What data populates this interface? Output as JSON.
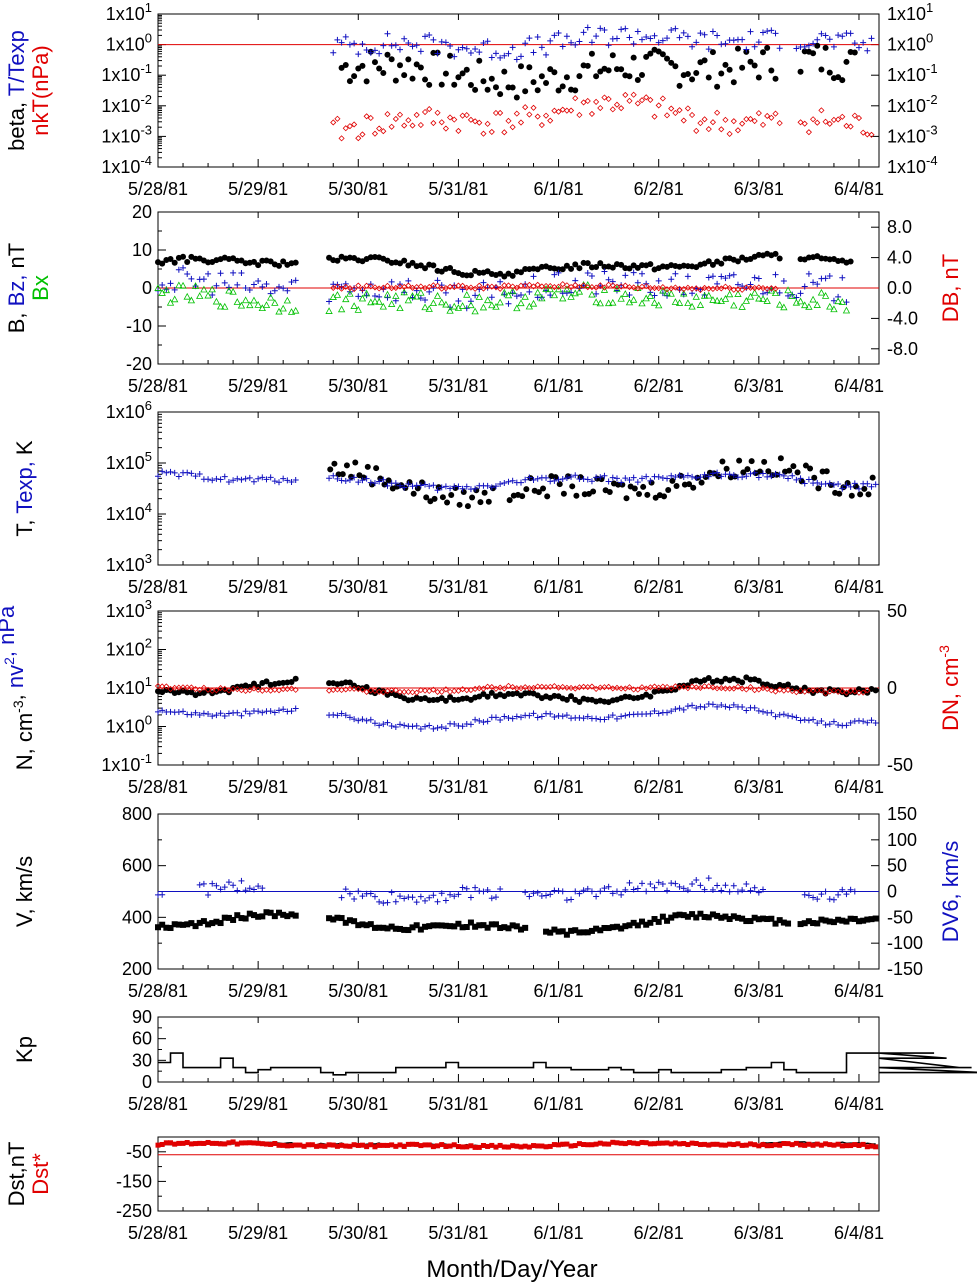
{
  "chart_data": {
    "type": "scatter",
    "x_axis": {
      "label": "Month/Day/Year",
      "ticks": [
        "5/28/81",
        "5/29/81",
        "5/30/81",
        "5/31/81",
        "6/1/81",
        "6/2/81",
        "6/3/81",
        "6/4/81"
      ],
      "range_days": [
        0,
        7.2
      ]
    },
    "colors": {
      "black": "#000000",
      "red": "#e00000",
      "blue": "#1010c0",
      "green": "#00c000"
    },
    "panels": [
      {
        "id": "beta",
        "scale": "log",
        "left_labels": [
          {
            "text": "beta, ",
            "color": "black",
            "line": 1
          },
          {
            "text": "T/Texp",
            "color": "blue",
            "line": 1
          },
          {
            "text": "nkT(nPa)",
            "color": "red",
            "line": 2
          }
        ],
        "y_ticks": [
          "1x10-4",
          "1x10-3",
          "1x10-2",
          "1x10-1",
          "1x100",
          "1x101"
        ],
        "y_exponents": [
          -4,
          -3,
          -2,
          -1,
          0,
          1
        ],
        "right_ticks": [
          "1x10-4",
          "1x10-3",
          "1x10-2",
          "1x10-1",
          "1x100",
          "1x101"
        ],
        "ylim": [
          -4,
          1
        ],
        "ref_line": {
          "y": 1,
          "color": "red"
        },
        "series": [
          {
            "name": "beta",
            "marker": "dot",
            "color": "black",
            "base": 0.15,
            "amp": 0.4,
            "noise": 0.6,
            "gaps": [
              [
                1.4,
                1.8
              ],
              [
                6.2,
                6.4
              ]
            ],
            "start": 1.75,
            "end": 7.0
          },
          {
            "name": "T/Texp",
            "marker": "plus",
            "color": "blue",
            "base": 1.2,
            "amp": 0.3,
            "noise": 0.35,
            "gaps": [
              [
                6.25,
                6.35
              ]
            ],
            "start": 1.75,
            "end": 7.15
          },
          {
            "name": "nkT",
            "marker": "diamond",
            "color": "red",
            "base": 0.004,
            "amp": 0.5,
            "noise": 0.4,
            "gaps": [
              [
                6.25,
                6.4
              ]
            ],
            "start": 1.75,
            "end": 7.15
          }
        ]
      },
      {
        "id": "bfield",
        "scale": "linear",
        "left_labels": [
          {
            "text": "B, ",
            "color": "black",
            "line": 1
          },
          {
            "text": "Bz, ",
            "color": "blue",
            "line": 1
          },
          {
            "text": "nT",
            "color": "black",
            "line": 1
          },
          {
            "text": "Bx",
            "color": "green",
            "line": 2
          }
        ],
        "right_labels": [
          {
            "text": "DB, nT",
            "color": "red"
          }
        ],
        "y_ticks": [
          "-20",
          "-10",
          "0",
          "10",
          "20"
        ],
        "y_values": [
          -20,
          -10,
          0,
          10,
          20
        ],
        "ylim": [
          -20,
          20
        ],
        "right_ticks": [
          "-8.0",
          "-4.0",
          "0.0",
          "4.0",
          "8.0"
        ],
        "right_values": [
          -8,
          -4,
          0,
          4,
          8
        ],
        "right_lim": [
          -10,
          10
        ],
        "ref_line": {
          "y": 0,
          "color": "red"
        },
        "series": [
          {
            "name": "B",
            "marker": "dot",
            "color": "black",
            "base": 6,
            "amp": 2.5,
            "noise": 0.8,
            "gaps": [
              [
                1.4,
                1.7
              ],
              [
                6.25,
                6.4
              ]
            ],
            "start": 0.0,
            "end": 6.95
          },
          {
            "name": "Bz",
            "marker": "plus",
            "color": "blue",
            "base": 0,
            "amp": 2,
            "noise": 3.5,
            "gaps": [
              [
                1.4,
                1.7
              ]
            ],
            "start": 0.0,
            "end": 6.9
          },
          {
            "name": "Bx",
            "marker": "triangle",
            "color": "green",
            "base": -3,
            "amp": 1.5,
            "noise": 2.5,
            "gaps": [
              [
                1.4,
                1.7
              ]
            ],
            "start": 0.0,
            "end": 6.9
          },
          {
            "name": "DB",
            "marker": "diamond",
            "color": "red",
            "base": 0.2,
            "amp": 0.4,
            "noise": 0.5,
            "gaps": [
              [
                0,
                1.75
              ],
              [
                6.25,
                7.2
              ]
            ],
            "start": 1.75,
            "end": 6.2
          }
        ]
      },
      {
        "id": "temp",
        "scale": "log",
        "left_labels": [
          {
            "text": "T, ",
            "color": "black",
            "line": 1
          },
          {
            "text": "Texp, ",
            "color": "blue",
            "line": 1
          },
          {
            "text": "K",
            "color": "black",
            "line": 1
          }
        ],
        "y_ticks": [
          "1x103",
          "1x104",
          "1x105",
          "1x106"
        ],
        "y_exponents": [
          3,
          4,
          5,
          6
        ],
        "ylim": [
          3,
          6
        ],
        "series": [
          {
            "name": "T",
            "marker": "dot",
            "color": "black",
            "base": 40000,
            "amp": 0.35,
            "noise": 0.2,
            "gaps": [
              [
                0,
                1.72
              ],
              [
                3.35,
                3.5
              ]
            ],
            "start": 1.72,
            "end": 7.15
          },
          {
            "name": "Texp",
            "marker": "plus",
            "color": "blue",
            "base": 45000,
            "amp": 0.15,
            "noise": 0.06,
            "gaps": [
              [
                1.4,
                1.7
              ]
            ],
            "start": 0.0,
            "end": 7.2
          }
        ]
      },
      {
        "id": "density",
        "scale": "log",
        "left_labels": [
          {
            "text": "N, cm",
            "color": "black",
            "line": 1,
            "sup": "-3"
          },
          {
            "text": ", ",
            "color": "black",
            "line": 1
          },
          {
            "text": "nv",
            "color": "blue",
            "line": 1,
            "sup": "2"
          },
          {
            "text": ", nPa",
            "color": "blue",
            "line": 1
          }
        ],
        "right_labels": [
          {
            "text": "DN, cm",
            "color": "red",
            "sup": "-3"
          }
        ],
        "y_ticks": [
          "1x10-1",
          "1x100",
          "1x101",
          "1x102",
          "1x103"
        ],
        "y_exponents": [
          -1,
          0,
          1,
          2,
          3
        ],
        "ylim": [
          -1,
          3
        ],
        "right_ticks": [
          "-50",
          "0",
          "50"
        ],
        "right_values": [
          -50,
          0,
          50
        ],
        "right_lim": [
          -50,
          50
        ],
        "ref_line": {
          "y": 10,
          "color": "red"
        },
        "series": [
          {
            "name": "N",
            "marker": "dot",
            "color": "black",
            "base": 8,
            "amp": 0.35,
            "noise": 0.07,
            "gaps": [
              [
                1.4,
                1.7
              ]
            ],
            "start": 0.0,
            "end": 7.2
          },
          {
            "name": "nv2",
            "marker": "plus",
            "color": "blue",
            "base": 1.8,
            "amp": 0.3,
            "noise": 0.06,
            "gaps": [
              [
                1.4,
                1.7
              ]
            ],
            "start": 0.0,
            "end": 7.2
          },
          {
            "name": "DN",
            "marker": "diamond",
            "color": "red",
            "base": 9.5,
            "amp": 0.08,
            "noise": 0.04,
            "gaps": [
              [
                1.4,
                1.7
              ]
            ],
            "start": 0.0,
            "end": 7.1
          }
        ]
      },
      {
        "id": "velocity",
        "scale": "linear",
        "left_labels": [
          {
            "text": "V, km/s",
            "color": "black",
            "line": 1
          }
        ],
        "right_labels": [
          {
            "text": "DV6, km/s",
            "color": "blue"
          }
        ],
        "y_ticks": [
          "200",
          "400",
          "600",
          "800"
        ],
        "y_values": [
          200,
          400,
          600,
          800
        ],
        "ylim": [
          200,
          800
        ],
        "right_ticks": [
          "-150",
          "-100",
          "-50",
          "0",
          "50",
          "100",
          "150"
        ],
        "right_values": [
          -150,
          -100,
          -50,
          0,
          50,
          100,
          150
        ],
        "right_lim": [
          -150,
          150
        ],
        "ref_line": {
          "y": 500,
          "color": "blue"
        },
        "series": [
          {
            "name": "V",
            "marker": "square",
            "color": "black",
            "base": 375,
            "amp": 40,
            "noise": 10,
            "gaps": [
              [
                1.4,
                1.7
              ],
              [
                3.7,
                3.85
              ],
              [
                6.3,
                6.4
              ]
            ],
            "start": 0.0,
            "end": 7.2
          },
          {
            "name": "DV6",
            "marker": "plus",
            "color": "blue",
            "base": 500,
            "amp": 30,
            "noise": 25,
            "gaps": [
              [
                0.05,
                0.4
              ],
              [
                1.05,
                1.8
              ],
              [
                3.45,
                3.65
              ],
              [
                6.05,
                6.45
              ]
            ],
            "start": 0.0,
            "end": 7.0
          }
        ]
      },
      {
        "id": "kp",
        "scale": "linear",
        "left_labels": [
          {
            "text": "Kp",
            "color": "black",
            "line": 1
          }
        ],
        "y_ticks": [
          "0",
          "30",
          "60",
          "90"
        ],
        "y_values": [
          0,
          30,
          60,
          90
        ],
        "ylim": [
          0,
          90
        ],
        "series": [
          {
            "name": "Kp",
            "marker": "step",
            "color": "black",
            "values": [
              27,
              40,
              20,
              20,
              20,
              33,
              20,
              13,
              17,
              20,
              20,
              20,
              20,
              13,
              10,
              13,
              13,
              13,
              13,
              20,
              20,
              20,
              20,
              27,
              20,
              20,
              20,
              20,
              20,
              20,
              27,
              20,
              20,
              17,
              17,
              17,
              20,
              17,
              13,
              13,
              17,
              13,
              13,
              13,
              13,
              17,
              17,
              20,
              20,
              27,
              17,
              13,
              13,
              13,
              13,
              40,
              40,
              40,
              40,
              40,
              40,
              40,
              40,
              33,
              20,
              20,
              13,
              13
            ]
          }
        ]
      },
      {
        "id": "dst",
        "scale": "linear",
        "left_labels": [
          {
            "text": "Dst,nT",
            "color": "black",
            "line": 1
          },
          {
            "text": "Dst*",
            "color": "red",
            "line": 2
          }
        ],
        "y_ticks": [
          "-250",
          "-150",
          "-50"
        ],
        "y_values": [
          -250,
          -150,
          -50
        ],
        "ylim": [
          -250,
          0
        ],
        "ref_line": {
          "y": -60,
          "color": "red"
        },
        "series": [
          {
            "name": "Dst",
            "marker": "line",
            "color": "black",
            "base": -25,
            "amp": 6,
            "noise": 4,
            "gaps": [],
            "start": 0.0,
            "end": 7.2
          },
          {
            "name": "Dst*",
            "marker": "redsquare",
            "color": "red",
            "base": -27,
            "amp": 7,
            "noise": 4,
            "gaps": [],
            "start": 0.0,
            "end": 7.2
          }
        ]
      }
    ]
  }
}
